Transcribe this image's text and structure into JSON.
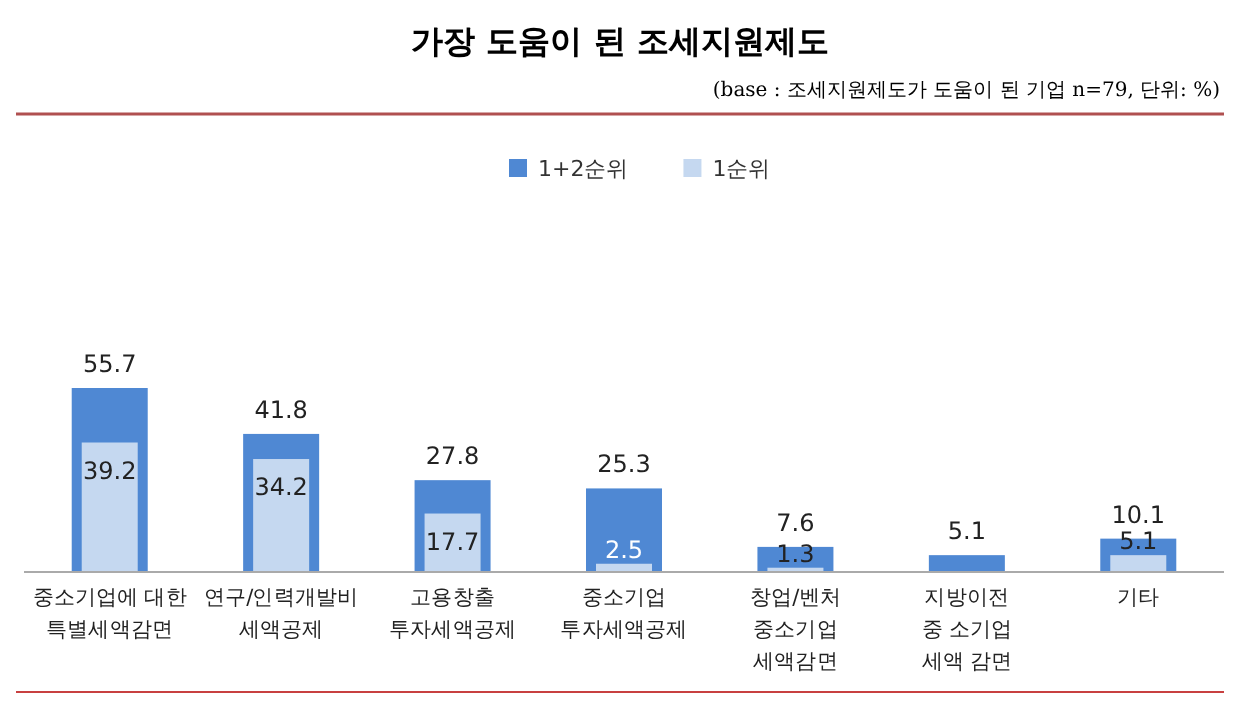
{
  "chart_data": {
    "type": "bar",
    "title": "가장 도움이 된 조세지원제도",
    "subtitle": "(base : 조세지원제도가 도움이 된 기업 n=79, 단위: %)",
    "categories": [
      "중소기업에 대한\n특별세액감면",
      "연구/인력개발비\n세액공제",
      "고용창출\n투자세액공제",
      "중소기업\n투자세액공제",
      "창업/벤처\n중소기업\n세액감면",
      "지방이전\n중 소기업\n세액 감면",
      "기타"
    ],
    "series": [
      {
        "name": "1+2순위",
        "color": "#4f88d3",
        "values": [
          55.7,
          41.8,
          27.8,
          25.3,
          7.6,
          5.1,
          10.1
        ]
      },
      {
        "name": "1순위",
        "color": "#c5d8f0",
        "values": [
          39.2,
          34.2,
          17.7,
          2.5,
          1.3,
          null,
          5.1
        ]
      }
    ],
    "data_labels": true,
    "legend": "top"
  }
}
